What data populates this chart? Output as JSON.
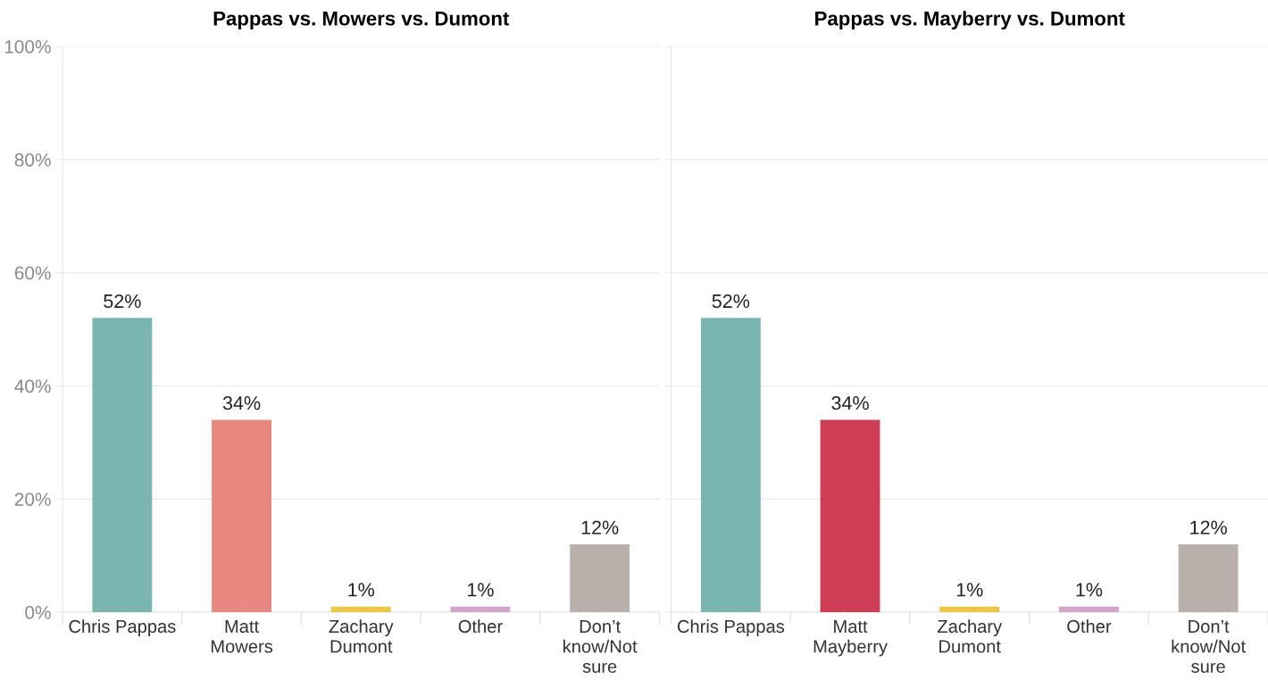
{
  "chart_data": [
    {
      "type": "bar",
      "title": "Pappas vs. Mowers vs. Dumont",
      "categories": [
        "Chris Pappas",
        "Matt\nMowers",
        "Zachary\nDumont",
        "Other",
        "Don’t\nknow/Not\nsure"
      ],
      "values": [
        52,
        34,
        1,
        1,
        12
      ],
      "colors": [
        "#79b6b0",
        "#e98781",
        "#ecc844",
        "#d3a4c9",
        "#b9b0ab"
      ],
      "value_labels": [
        "52%",
        "34%",
        "1%",
        "1%",
        "12%"
      ],
      "ylim": [
        0,
        100
      ],
      "yticks": [
        {
          "value": 0,
          "label": "0%"
        },
        {
          "value": 20,
          "label": "20%"
        },
        {
          "value": 40,
          "label": "40%"
        },
        {
          "value": 60,
          "label": "60%"
        },
        {
          "value": 80,
          "label": "80%"
        },
        {
          "value": 100,
          "label": "100%"
        }
      ],
      "grid": "y"
    },
    {
      "type": "bar",
      "title": "Pappas vs. Mayberry vs. Dumont",
      "categories": [
        "Chris Pappas",
        "Matt\nMayberry",
        "Zachary\nDumont",
        "Other",
        "Don’t\nknow/Not\nsure"
      ],
      "values": [
        52,
        34,
        1,
        1,
        12
      ],
      "colors": [
        "#79b6b0",
        "#d03e55",
        "#ecc844",
        "#d3a4c9",
        "#b9b0ab"
      ],
      "value_labels": [
        "52%",
        "34%",
        "1%",
        "1%",
        "12%"
      ],
      "ylim": [
        0,
        100
      ],
      "yticks": [
        {
          "value": 0,
          "label": null
        },
        {
          "value": 20,
          "label": null
        },
        {
          "value": 40,
          "label": null
        },
        {
          "value": 60,
          "label": null
        },
        {
          "value": 80,
          "label": null
        },
        {
          "value": 100,
          "label": null
        }
      ],
      "grid": "y",
      "tick_labels": "x"
    }
  ]
}
